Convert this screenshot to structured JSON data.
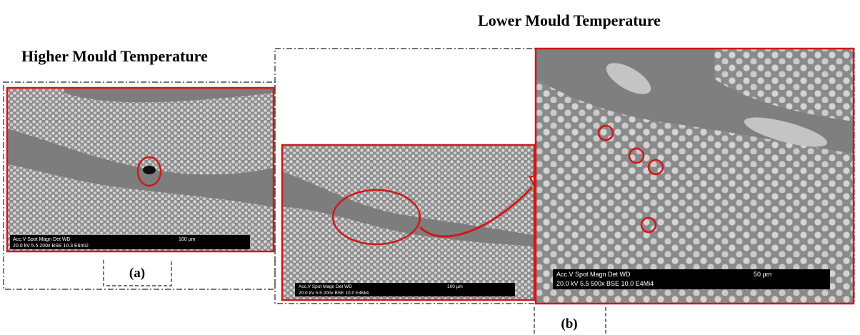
{
  "title_lower": "Lower Mould Temperature",
  "title_higher": "Higher Mould Temperature",
  "panels": [
    {
      "label": "(a)",
      "images": [
        {
          "header": "Acc.V  Spot Magn   Det  WD",
          "settings": "20.0 kV 5.5   200x    BSE 10.3  E6mi2",
          "scale": "100 µm"
        }
      ]
    },
    {
      "label": "(b)",
      "images": [
        {
          "header": "Acc.V  Spot Magn   Det  WD",
          "settings": "20.0 kV 5.5   200x    BSE 10.0  E4Mi4",
          "scale": "100 µm"
        },
        {
          "header": "Acc.V   Spot Magn     Det  WD",
          "settings": "20.0 kV 5.5   500x     BSE 10.0  E4Mi4",
          "scale": "50 µm"
        }
      ]
    }
  ]
}
